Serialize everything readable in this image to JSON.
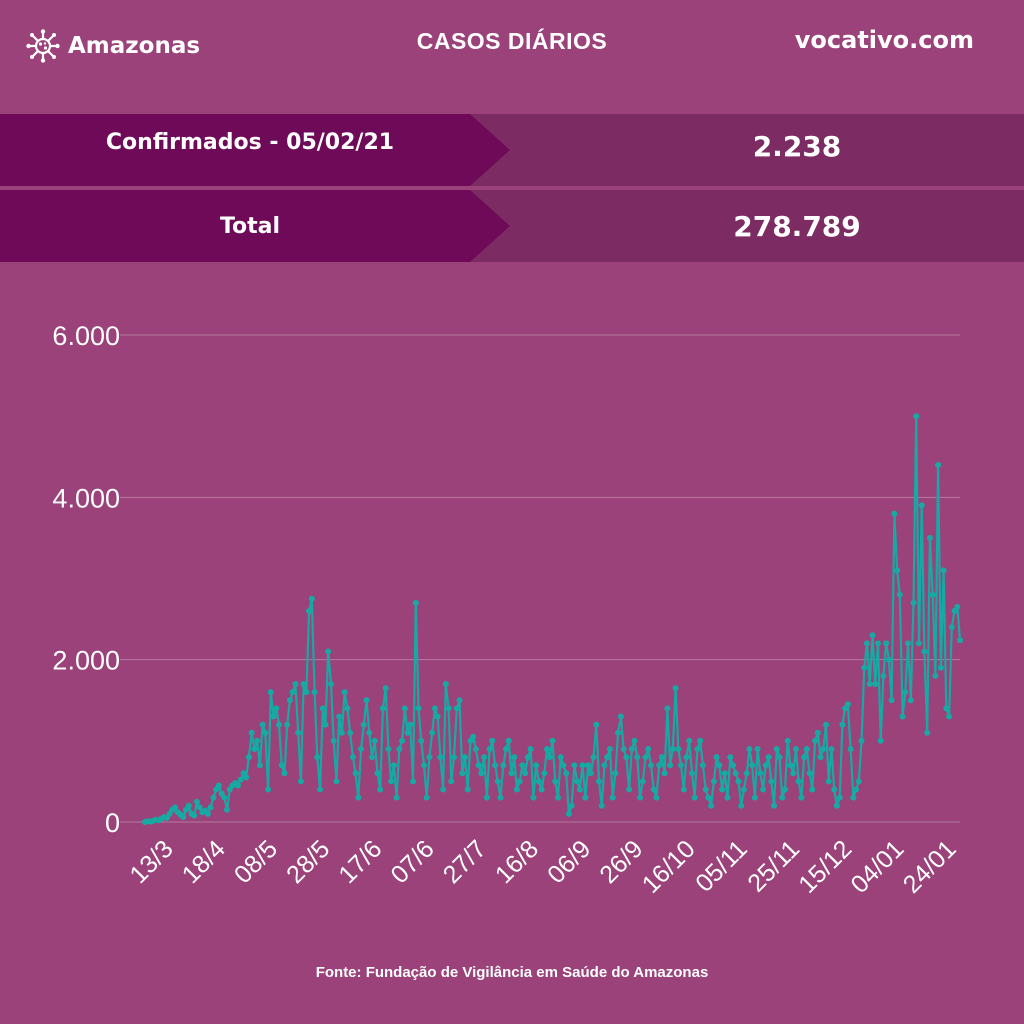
{
  "header": {
    "brand": "Amazonas",
    "brand_icon": "virus-icon",
    "title": "CASOS DIÁRIOS",
    "site": "vocativo.com"
  },
  "stats": [
    {
      "label": "Confirmados - 05/02/21",
      "value": "2.238"
    },
    {
      "label": "Total",
      "value": "278.789"
    }
  ],
  "footer": {
    "source": "Fonte: Fundação de Vigilância em Saúde do Amazonas"
  },
  "colors": {
    "background": "#9a4279",
    "label_panel": "#6e0a58",
    "value_panel": "#7c2c63",
    "line": "#17a9a3",
    "grid": "#b77aa1"
  },
  "chart_data": {
    "type": "line",
    "title": "",
    "xlabel": "",
    "ylabel": "",
    "ylim": [
      0,
      6000
    ],
    "y_ticks": [
      0,
      2000,
      4000,
      6000
    ],
    "y_tick_labels": [
      "0",
      "2.000",
      "4.000",
      "6.000"
    ],
    "x_tick_labels": [
      "13/3",
      "18/4",
      "08/5",
      "28/5",
      "17/6",
      "07/6",
      "27/7",
      "16/8",
      "06/9",
      "26/9",
      "16/10",
      "05/11",
      "25/11",
      "15/12",
      "04/01",
      "24/01"
    ],
    "grid": true,
    "legend": "none",
    "series": [
      {
        "values": [
          0,
          10,
          5,
          15,
          30,
          20,
          40,
          60,
          50,
          100,
          150,
          180,
          120,
          90,
          60,
          150,
          200,
          100,
          80,
          250,
          180,
          120,
          140,
          100,
          180,
          300,
          400,
          450,
          350,
          300,
          150,
          400,
          450,
          480,
          450,
          520,
          600,
          550,
          800,
          1100,
          900,
          1000,
          700,
          1200,
          1100,
          400,
          1600,
          1300,
          1400,
          1200,
          700,
          600,
          1200,
          1500,
          1600,
          1700,
          1100,
          500,
          1700,
          1600,
          2600,
          2750,
          1600,
          800,
          400,
          1400,
          1200,
          2100,
          1700,
          1000,
          500,
          1300,
          1100,
          1600,
          1400,
          1100,
          800,
          600,
          300,
          900,
          1200,
          1500,
          1100,
          800,
          1000,
          600,
          400,
          1400,
          1650,
          900,
          500,
          700,
          300,
          900,
          1000,
          1400,
          1100,
          1200,
          500,
          2700,
          1400,
          1000,
          700,
          300,
          800,
          1100,
          1400,
          1300,
          800,
          400,
          1700,
          1400,
          500,
          800,
          1400,
          1500,
          600,
          800,
          400,
          1000,
          1050,
          900,
          700,
          600,
          800,
          300,
          900,
          1000,
          700,
          500,
          300,
          700,
          900,
          1000,
          600,
          800,
          400,
          500,
          700,
          600,
          800,
          900,
          300,
          700,
          500,
          400,
          600,
          900,
          800,
          1000,
          500,
          300,
          800,
          700,
          600,
          100,
          200,
          700,
          500,
          400,
          700,
          300,
          700,
          600,
          800,
          1200,
          500,
          200,
          700,
          800,
          900,
          300,
          600,
          1100,
          1300,
          900,
          800,
          400,
          900,
          1000,
          800,
          300,
          500,
          800,
          900,
          700,
          400,
          300,
          700,
          800,
          600,
          1400,
          700,
          900,
          1650,
          900,
          700,
          400,
          800,
          1000,
          600,
          300,
          900,
          1000,
          700,
          400,
          300,
          200,
          500,
          800,
          700,
          400,
          600,
          300,
          800,
          700,
          600,
          500,
          200,
          400,
          600,
          900,
          700,
          300,
          900,
          600,
          400,
          700,
          800,
          500,
          200,
          900,
          800,
          300,
          400,
          1000,
          700,
          600,
          900,
          500,
          300,
          800,
          900,
          600,
          400,
          1000,
          1100,
          800,
          900,
          1200,
          500,
          900,
          400,
          200,
          300,
          1200,
          1400,
          1450,
          900,
          300,
          400,
          500,
          1000,
          1900,
          2200,
          1700,
          2300,
          1700,
          2200,
          1000,
          1800,
          2200,
          2000,
          1500,
          3800,
          3100,
          2800,
          1300,
          1600,
          2200,
          1500,
          2700,
          5000,
          2200,
          3900,
          2100,
          1100,
          3500,
          2800,
          1800,
          4400,
          1900,
          3100,
          1400,
          1300,
          2400,
          2600,
          2650,
          2238
        ]
      }
    ]
  }
}
